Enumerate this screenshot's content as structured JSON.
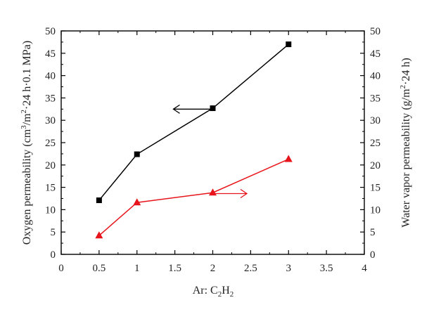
{
  "chart_data": {
    "type": "line",
    "xlabel_parts": {
      "base": "Ar: C",
      "sub1": "2",
      "mid": "H",
      "sub2": "2"
    },
    "ylabel_left_parts": {
      "a": "Oxygen permeability (cm",
      "sup1": "3",
      "b": "/m",
      "sup2": "2",
      "c": "·24 h·0.1 MPa)"
    },
    "ylabel_right_parts": {
      "a": "Water vapor permeability (g/m",
      "sup": "2",
      "b": "·24 h)"
    },
    "xlim": [
      0,
      4
    ],
    "ylim_left": [
      0,
      50
    ],
    "ylim_right": [
      0,
      50
    ],
    "xticks": [
      "0",
      "0.5",
      "1",
      "1.5",
      "2",
      "2.5",
      "3",
      "3.5",
      "4"
    ],
    "xtick_values": [
      0,
      0.5,
      1,
      1.5,
      2,
      2.5,
      3,
      3.5,
      4
    ],
    "yticks": [
      "0",
      "5",
      "10",
      "15",
      "20",
      "25",
      "30",
      "35",
      "40",
      "45",
      "50"
    ],
    "ytick_values": [
      0,
      5,
      10,
      15,
      20,
      25,
      30,
      35,
      40,
      45,
      50
    ],
    "series": [
      {
        "axis": "left",
        "marker": "square",
        "color": "#000000",
        "x": [
          0.5,
          1,
          2,
          3
        ],
        "y": [
          12.1,
          22.4,
          32.7,
          47.0
        ]
      },
      {
        "axis": "right",
        "marker": "triangle",
        "color": "#e8141b",
        "x": [
          0.5,
          1,
          2,
          3
        ],
        "y": [
          4.2,
          11.6,
          13.8,
          21.3
        ]
      }
    ],
    "annotations": [
      {
        "type": "arrow",
        "direction": "left",
        "series": 0,
        "x_from": 2.0,
        "x_to": 1.48,
        "y": 32.5
      },
      {
        "type": "arrow",
        "direction": "right",
        "series": 1,
        "x_from": 2.0,
        "x_to": 2.45,
        "y": 13.6
      }
    ]
  }
}
